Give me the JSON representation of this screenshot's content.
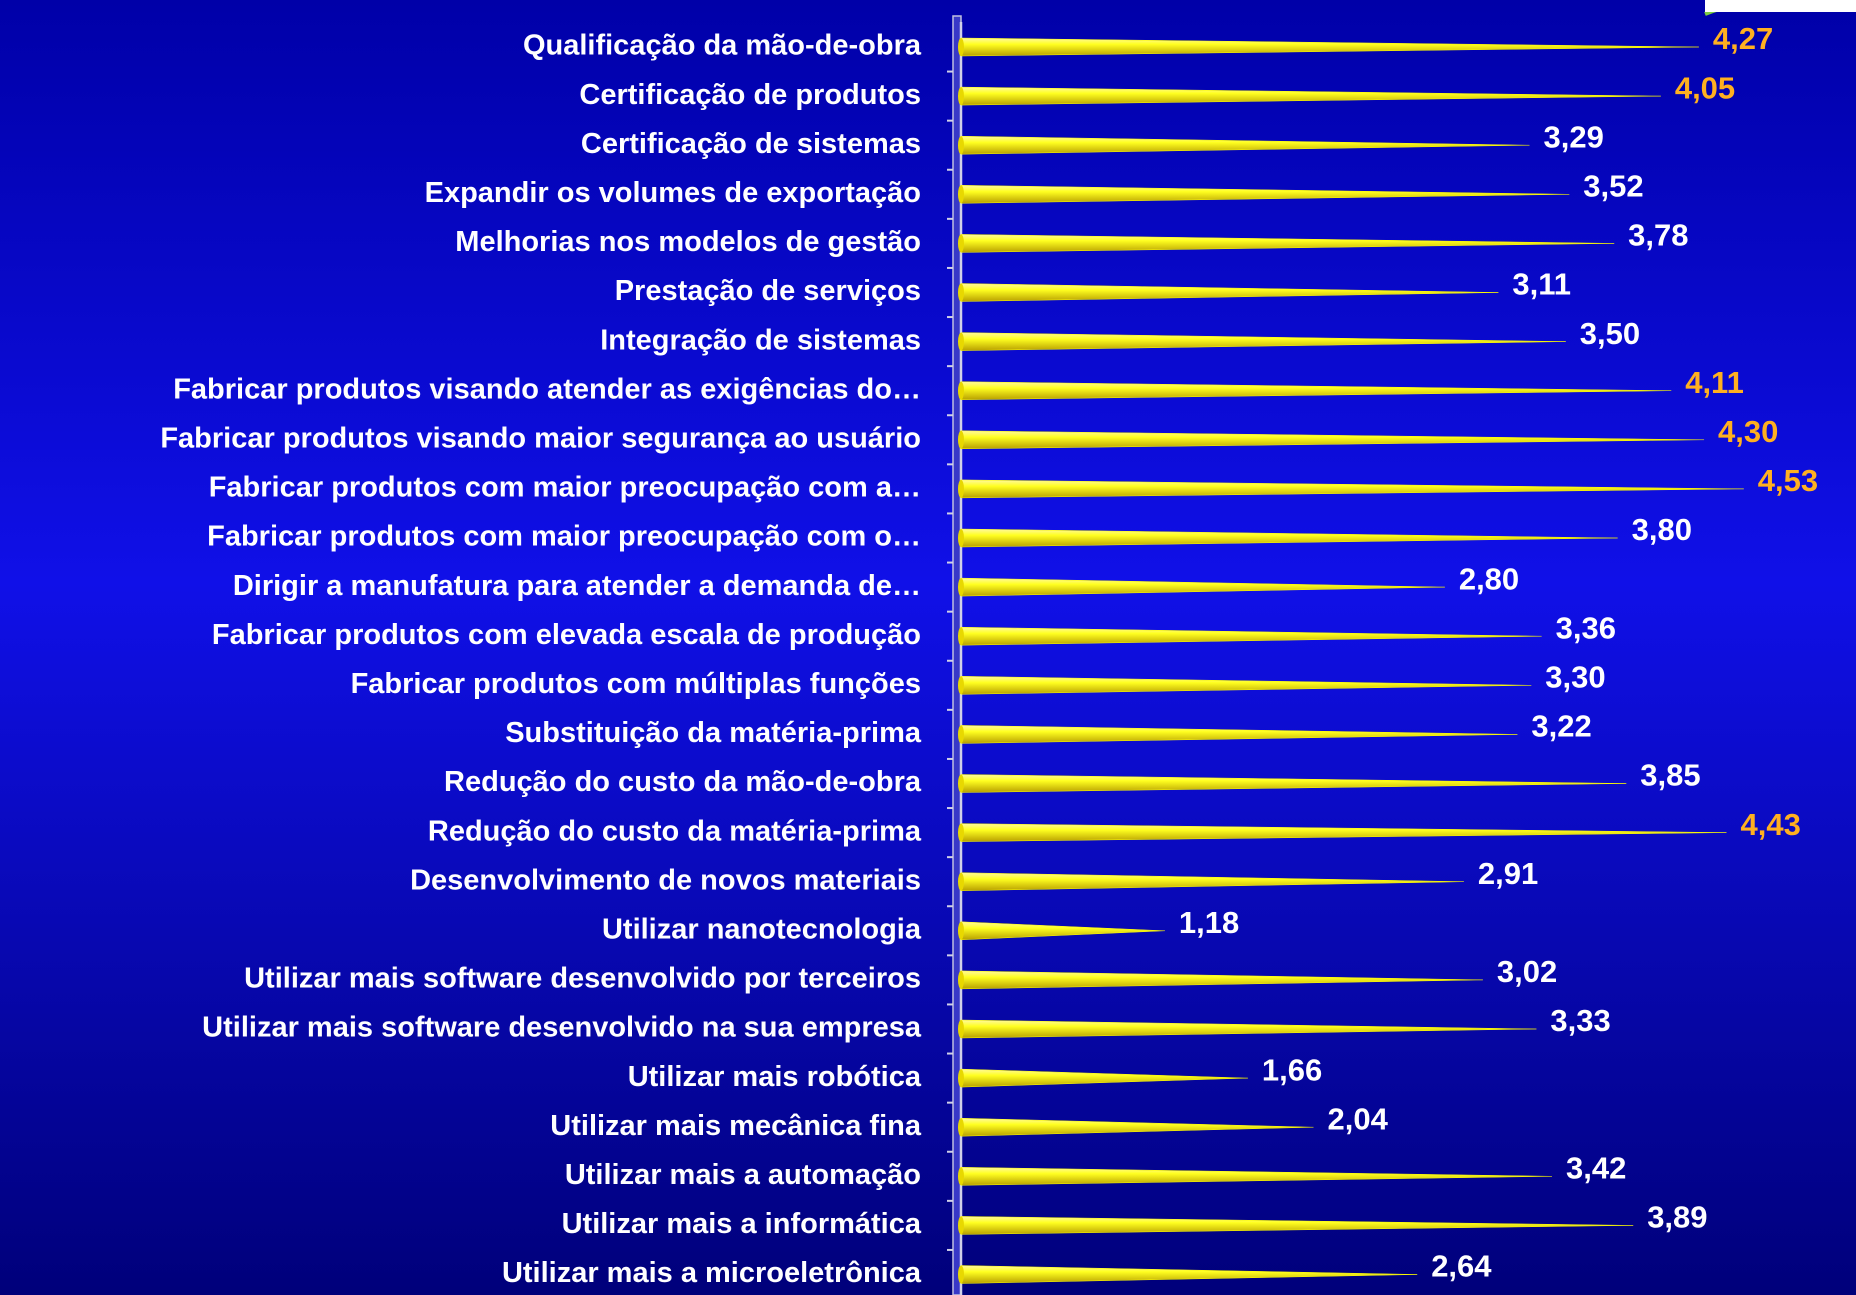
{
  "chart_data": {
    "type": "bar",
    "orientation": "horizontal",
    "categories": [
      "Qualificação da mão-de-obra",
      "Certificação de produtos",
      "Certificação de sistemas",
      "Expandir os volumes de exportação",
      "Melhorias nos modelos de gestão",
      "Prestação de serviços",
      "Integração de sistemas",
      "Fabricar produtos visando atender as exigências do…",
      "Fabricar produtos visando maior segurança ao usuário",
      "Fabricar produtos com maior preocupação com a…",
      "Fabricar produtos com maior preocupação com o…",
      "Dirigir a manufatura para atender a demanda de…",
      "Fabricar produtos com elevada escala de produção",
      "Fabricar produtos com múltiplas funções",
      "Substituição da matéria-prima",
      "Redução do custo da mão-de-obra",
      "Redução do custo da matéria-prima",
      "Desenvolvimento de novos materiais",
      "Utilizar nanotecnologia",
      "Utilizar mais software desenvolvido por terceiros",
      "Utilizar mais software desenvolvido na sua empresa",
      "Utilizar mais robótica",
      "Utilizar mais mecânica fina",
      "Utilizar mais a automação",
      "Utilizar mais a informática",
      "Utilizar mais a microeletrônica"
    ],
    "values": [
      4.27,
      4.05,
      3.29,
      3.52,
      3.78,
      3.11,
      3.5,
      4.11,
      4.3,
      4.53,
      3.8,
      2.8,
      3.36,
      3.3,
      3.22,
      3.85,
      4.43,
      2.91,
      1.18,
      3.02,
      3.33,
      1.66,
      2.04,
      3.42,
      3.89,
      2.64
    ],
    "value_labels": [
      "4,27",
      "4,05",
      "3,29",
      "3,52",
      "3,78",
      "3,11",
      "3,50",
      "4,11",
      "4,30",
      "4,53",
      "3,80",
      "2,80",
      "3,36",
      "3,30",
      "3,22",
      "3,85",
      "4,43",
      "2,91",
      "1,18",
      "3,02",
      "3,33",
      "1,66",
      "2,04",
      "3,42",
      "3,89",
      "2,64"
    ],
    "value_label_colors": [
      "#ffb020",
      "#ffb020",
      "#ffffff",
      "#ffffff",
      "#ffffff",
      "#ffffff",
      "#ffffff",
      "#ffb020",
      "#ffb020",
      "#ffb020",
      "#ffffff",
      "#ffffff",
      "#ffffff",
      "#ffffff",
      "#ffffff",
      "#ffffff",
      "#ffb020",
      "#ffffff",
      "#ffffff",
      "#ffffff",
      "#ffffff",
      "#ffffff",
      "#ffffff",
      "#ffffff",
      "#ffffff",
      "#ffffff"
    ],
    "color": "#ffff00",
    "xlim": [
      0,
      5
    ]
  }
}
